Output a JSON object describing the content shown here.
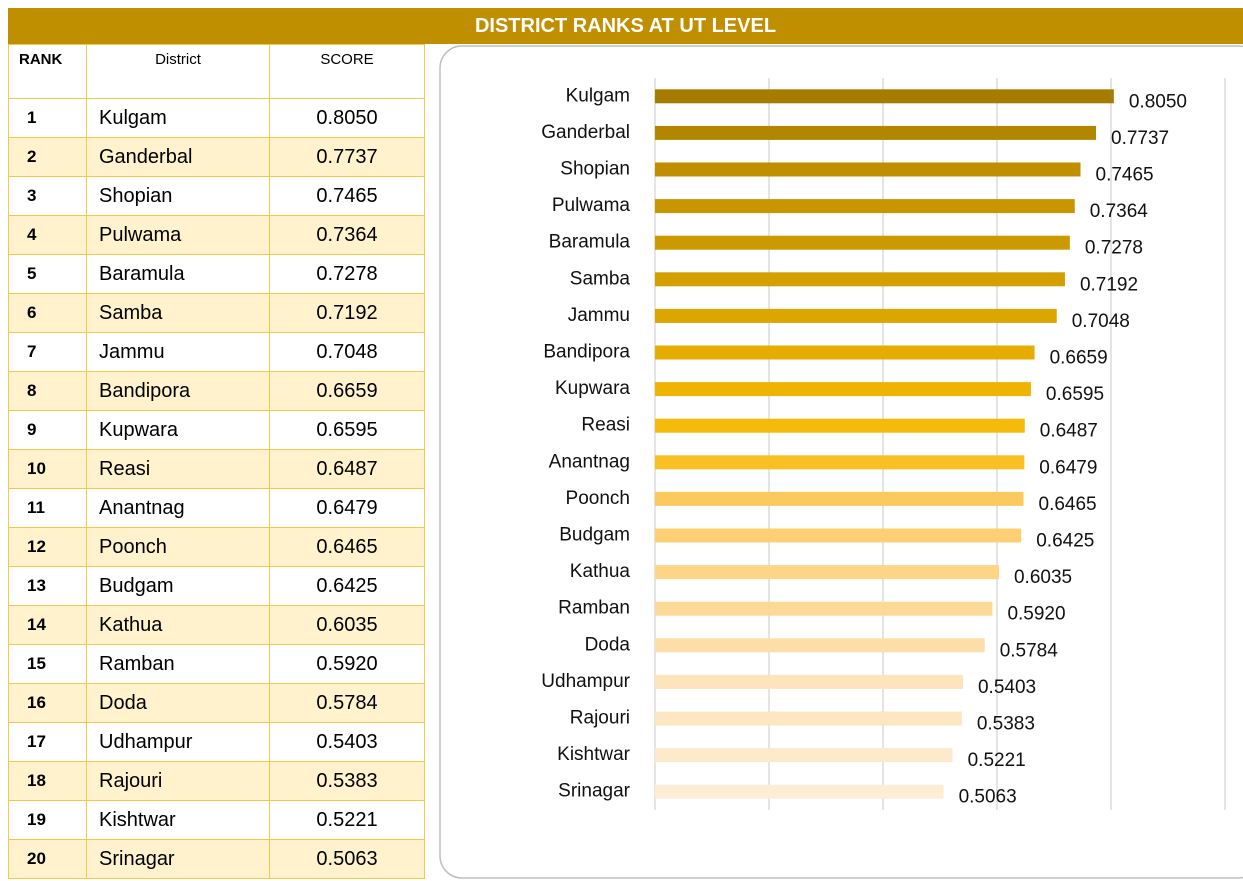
{
  "header": {
    "title": "DISTRICT RANKS AT UT LEVEL"
  },
  "table": {
    "columns": [
      "RANK",
      "District",
      "SCORE"
    ],
    "rows": [
      [
        "1",
        "Kulgam",
        "0.8050"
      ],
      [
        "2",
        "Ganderbal",
        "0.7737"
      ],
      [
        "3",
        "Shopian",
        "0.7465"
      ],
      [
        "4",
        "Pulwama",
        "0.7364"
      ],
      [
        "5",
        "Baramula",
        "0.7278"
      ],
      [
        "6",
        "Samba",
        "0.7192"
      ],
      [
        "7",
        "Jammu",
        "0.7048"
      ],
      [
        "8",
        "Bandipora",
        "0.6659"
      ],
      [
        "9",
        "Kupwara",
        "0.6595"
      ],
      [
        "10",
        "Reasi",
        "0.6487"
      ],
      [
        "11",
        "Anantnag",
        "0.6479"
      ],
      [
        "12",
        "Poonch",
        "0.6465"
      ],
      [
        "13",
        "Budgam",
        "0.6425"
      ],
      [
        "14",
        "Kathua",
        "0.6035"
      ],
      [
        "15",
        "Ramban",
        "0.5920"
      ],
      [
        "16",
        "Doda",
        "0.5784"
      ],
      [
        "17",
        "Udhampur",
        "0.5403"
      ],
      [
        "18",
        "Rajouri",
        "0.5383"
      ],
      [
        "19",
        "Kishtwar",
        "0.5221"
      ],
      [
        "20",
        "Srinagar",
        "0.5063"
      ]
    ]
  },
  "chart_data": {
    "type": "hbar",
    "categories": [
      "Kulgam",
      "Ganderbal",
      "Shopian",
      "Pulwama",
      "Baramula",
      "Samba",
      "Jammu",
      "Bandipora",
      "Kupwara",
      "Reasi",
      "Anantnag",
      "Poonch",
      "Budgam",
      "Kathua",
      "Ramban",
      "Doda",
      "Udhampur",
      "Rajouri",
      "Kishtwar",
      "Srinagar"
    ],
    "values": [
      0.805,
      0.7737,
      0.7465,
      0.7364,
      0.7278,
      0.7192,
      0.7048,
      0.6659,
      0.6595,
      0.6487,
      0.6479,
      0.6465,
      0.6425,
      0.6035,
      0.592,
      0.5784,
      0.5403,
      0.5383,
      0.5221,
      0.5063
    ],
    "value_labels": [
      "0.8050",
      "0.7737",
      "0.7465",
      "0.7364",
      "0.7278",
      "0.7192",
      "0.7048",
      "0.6659",
      "0.6595",
      "0.6487",
      "0.6479",
      "0.6465",
      "0.6425",
      "0.6035",
      "0.5920",
      "0.5784",
      "0.5403",
      "0.5383",
      "0.5221",
      "0.5063"
    ],
    "colors": [
      "#a67c00",
      "#b38600",
      "#bf8f00",
      "#c99600",
      "#cc9900",
      "#d4a000",
      "#dba600",
      "#e6ad00",
      "#f0b400",
      "#f5bb0a",
      "#f8c020",
      "#fcca5c",
      "#fdd073",
      "#fdd587",
      "#fdd998",
      "#fddea8",
      "#fde4bb",
      "#fde7c3",
      "#fdeacb",
      "#fdedd6"
    ],
    "xlim": [
      0,
      1
    ],
    "xticks": [
      0,
      0.2,
      0.4,
      0.6,
      0.8,
      1
    ],
    "grid": true
  }
}
